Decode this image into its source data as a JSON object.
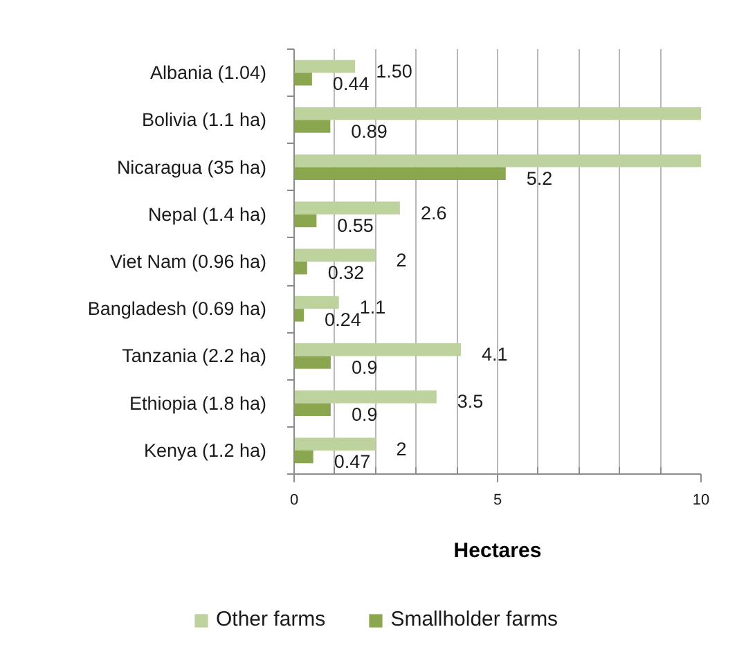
{
  "chart_data": {
    "type": "bar",
    "orientation": "horizontal",
    "categories": [
      "Albania (1.04)",
      "Bolivia (1.1 ha)",
      "Nicaragua (35 ha)",
      "Nepal (1.4 ha)",
      "Viet Nam (0.96 ha)",
      "Bangladesh (0.69 ha)",
      "Tanzania (2.2 ha)",
      "Ethiopia (1.8 ha)",
      "Kenya (1.2 ha)"
    ],
    "series": [
      {
        "name": "Other farms",
        "color": "#bdd29c",
        "values": [
          1.5,
          10,
          10,
          2.6,
          2,
          1.1,
          4.1,
          3.5,
          2
        ],
        "value_labels": [
          "1.50",
          null,
          null,
          "2.6",
          "2",
          "1.1",
          "4.1",
          "3.5",
          "2"
        ]
      },
      {
        "name": "Smallholder farms",
        "color": "#8aa64e",
        "values": [
          0.44,
          0.89,
          5.2,
          0.55,
          0.32,
          0.24,
          0.9,
          0.9,
          0.47
        ],
        "value_labels": [
          "0.44",
          "0.89",
          "5.2",
          "0.55",
          "0.32",
          "0.24",
          "0.9",
          "0.9",
          "0.47"
        ]
      }
    ],
    "xlabel": "Hectares",
    "xlim": [
      0,
      10
    ],
    "xticks": [
      0,
      {
        "value": 1,
        "label": null
      },
      {
        "value": 2,
        "label": null
      },
      {
        "value": 3,
        "label": null
      },
      {
        "value": 4,
        "label": null
      },
      5,
      {
        "value": 6,
        "label": null
      },
      {
        "value": 7,
        "label": null
      },
      {
        "value": 8,
        "label": null
      },
      {
        "value": 9,
        "label": null
      },
      10
    ],
    "grid": "x",
    "legend": "bottom"
  }
}
